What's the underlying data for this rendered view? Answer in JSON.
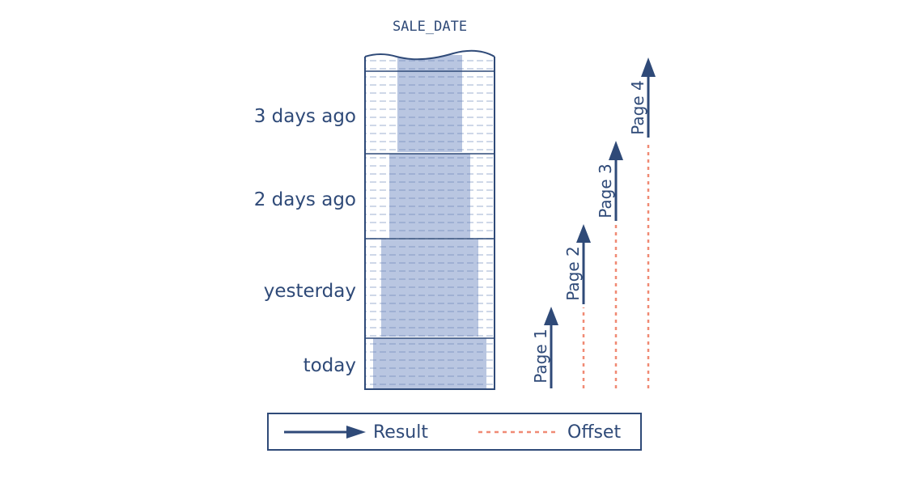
{
  "column_header": "SALE_DATE",
  "row_labels": [
    "3 days ago",
    "2 days ago",
    "yesterday",
    "today"
  ],
  "pages": [
    "Page 1",
    "Page 2",
    "Page 3",
    "Page 4"
  ],
  "legend": {
    "result": "Result",
    "offset": "Offset"
  },
  "colors": {
    "ink": "#2f4a78",
    "highlight": "#b9c6e1",
    "row_dash": "#dce3ef",
    "offset": "#f08a74"
  }
}
